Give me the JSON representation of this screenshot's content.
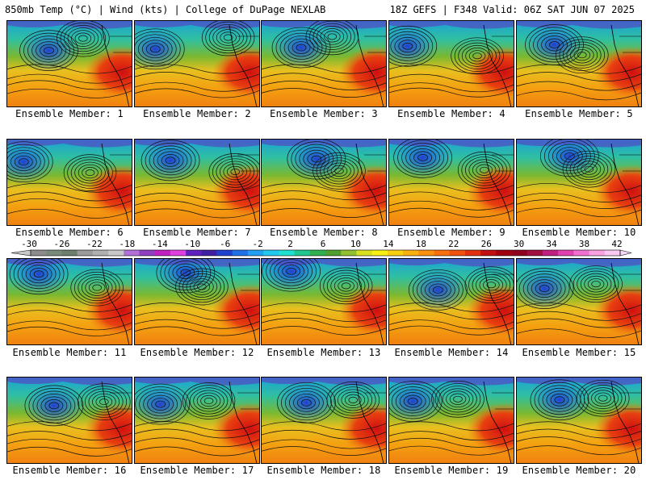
{
  "header": {
    "left": "850mb Temp (°C) | Wind (kts) | College of DuPage NEXLAB",
    "right": "18Z GEFS | F348 Valid: 06Z SAT JUN 07 2025"
  },
  "members": [
    {
      "label": "Ensemble Member: 1"
    },
    {
      "label": "Ensemble Member: 2"
    },
    {
      "label": "Ensemble Member: 3"
    },
    {
      "label": "Ensemble Member: 4"
    },
    {
      "label": "Ensemble Member: 5"
    },
    {
      "label": "Ensemble Member: 6"
    },
    {
      "label": "Ensemble Member: 7"
    },
    {
      "label": "Ensemble Member: 8"
    },
    {
      "label": "Ensemble Member: 9"
    },
    {
      "label": "Ensemble Member: 10"
    },
    {
      "label": "Ensemble Member: 11"
    },
    {
      "label": "Ensemble Member: 12"
    },
    {
      "label": "Ensemble Member: 13"
    },
    {
      "label": "Ensemble Member: 14"
    },
    {
      "label": "Ensemble Member: 15"
    },
    {
      "label": "Ensemble Member: 16"
    },
    {
      "label": "Ensemble Member: 17"
    },
    {
      "label": "Ensemble Member: 18"
    },
    {
      "label": "Ensemble Member: 19"
    },
    {
      "label": "Ensemble Member: 20"
    }
  ],
  "colorbar": {
    "ticks": [
      "-30",
      "-26",
      "-22",
      "-18",
      "-14",
      "-10",
      "-6",
      "-2",
      "2",
      "6",
      "10",
      "14",
      "18",
      "22",
      "26",
      "30",
      "34",
      "38",
      "42"
    ],
    "colors": [
      "#8c8c8c",
      "#7a8a7a",
      "#6e7e6e",
      "#9a9a9a",
      "#b0b0b0",
      "#c8c8c8",
      "#b070d8",
      "#9040c0",
      "#c020c0",
      "#e040e0",
      "#6020c0",
      "#4020a0",
      "#2040d0",
      "#2070e8",
      "#20a0f0",
      "#20c8f0",
      "#20e0d0",
      "#20c890",
      "#30b050",
      "#50a030",
      "#90c030",
      "#d8e020",
      "#f8f010",
      "#f8d010",
      "#f8b010",
      "#f89010",
      "#f87010",
      "#f05010",
      "#e03010",
      "#c01010",
      "#a00010",
      "#900020",
      "#a01040",
      "#c02080",
      "#e040b0",
      "#f070d0",
      "#f8a0e0",
      "#f8c8f0"
    ]
  }
}
